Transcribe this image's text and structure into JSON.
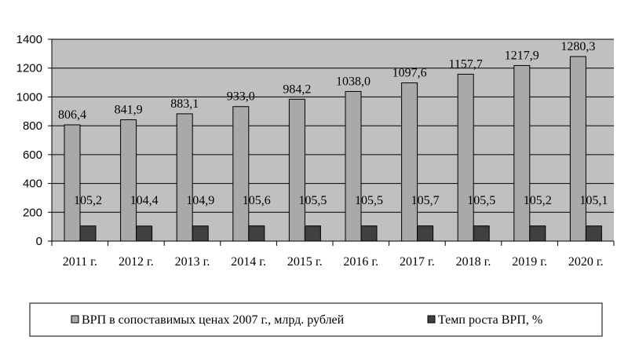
{
  "chart_data": {
    "type": "bar",
    "categories": [
      "2011 г.",
      "2012 г.",
      "2013 г.",
      "2014 г.",
      "2015 г.",
      "2016 г.",
      "2017 г.",
      "2018 г.",
      "2019 г.",
      "2020 г."
    ],
    "series": [
      {
        "name": "ВРП в сопоставимых ценах 2007 г., млрд. рублей",
        "values": [
          806.4,
          841.9,
          883.1,
          933.0,
          984.2,
          1038.0,
          1097.6,
          1157.7,
          1217.9,
          1280.3
        ],
        "labels": [
          "806,4",
          "841,9",
          "883,1",
          "933,0",
          "984,2",
          "1038,0",
          "1097,6",
          "1157,7",
          "1217,9",
          "1280,3"
        ],
        "color": "#a9a9a9"
      },
      {
        "name": "Темп роста ВРП, %",
        "values": [
          105.2,
          104.4,
          104.9,
          105.6,
          105.5,
          105.5,
          105.7,
          105.5,
          105.2,
          105.1
        ],
        "labels": [
          "105,2",
          "104,4",
          "104,9",
          "105,6",
          "105,5",
          "105,5",
          "105,7",
          "105,5",
          "105,2",
          "105,1"
        ],
        "color": "#404040"
      }
    ],
    "yticks": [
      "0",
      "200",
      "400",
      "600",
      "800",
      "1000",
      "1200",
      "1400"
    ],
    "ylim": [
      0,
      1400
    ],
    "grid": true,
    "plot_background": "#c0c0c0",
    "legend_position": "bottom"
  }
}
